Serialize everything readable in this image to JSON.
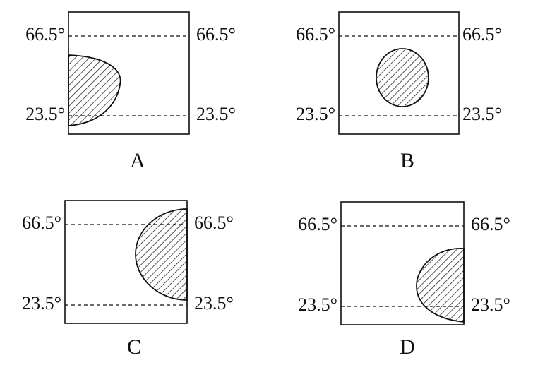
{
  "panels": [
    {
      "label": "A",
      "lines": [
        {
          "left": "66.5°",
          "right": "66.5°"
        },
        {
          "left": "23.5°",
          "right": "23.5°"
        }
      ]
    },
    {
      "label": "B",
      "lines": [
        {
          "left": "66.5°",
          "right": "66.5°"
        },
        {
          "left": "23.5°",
          "right": "23.5°"
        }
      ]
    },
    {
      "label": "C",
      "lines": [
        {
          "left": "66.5°",
          "right": "66.5°"
        },
        {
          "left": "23.5°",
          "right": "23.5°"
        }
      ]
    },
    {
      "label": "D",
      "lines": [
        {
          "left": "66.5°",
          "right": "66.5°"
        },
        {
          "left": "23.5°",
          "right": "23.5°"
        }
      ]
    }
  ]
}
